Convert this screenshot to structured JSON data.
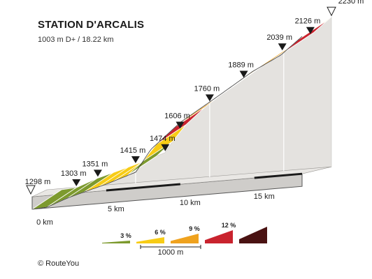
{
  "header": {
    "title": "STATION D'ARCALIS",
    "subtitle": "1003 m D+ / 18.22 km"
  },
  "footer": {
    "copyright": "©  RouteYou"
  },
  "chart_data": {
    "type": "area",
    "title": "STATION D'ARCALIS",
    "subtitle": "1003 m D+ / 18.22 km",
    "xlabel": "",
    "ylabel": "",
    "x_unit": "km",
    "xlim": [
      0,
      18.22
    ],
    "ylim": [
      1298,
      2230
    ],
    "distance_ticks": [
      {
        "km": 0,
        "label": "0 km"
      },
      {
        "km": 5,
        "label": "5 km"
      },
      {
        "km": 10,
        "label": "10 km"
      },
      {
        "km": 15,
        "label": "15 km"
      }
    ],
    "elevation_markers": [
      {
        "km": 0,
        "elevation": 1298,
        "label": "1298 m",
        "marker": "start"
      },
      {
        "km": 1,
        "elevation": 1303,
        "label": "1303 m",
        "marker": "km"
      },
      {
        "km": 2.45,
        "elevation": 1351,
        "label": "1351 m",
        "marker": "km"
      },
      {
        "km": 5,
        "elevation": 1415,
        "label": "1415 m",
        "marker": "km"
      },
      {
        "km": 7,
        "elevation": 1474,
        "label": "1474 m",
        "marker": "km"
      },
      {
        "km": 8,
        "elevation": 1606,
        "label": "1606 m",
        "marker": "km"
      },
      {
        "km": 10,
        "elevation": 1760,
        "label": "1760 m",
        "marker": "km"
      },
      {
        "km": 12.3,
        "elevation": 1889,
        "label": "1889 m",
        "marker": "km"
      },
      {
        "km": 14.9,
        "elevation": 2039,
        "label": "2039 m",
        "marker": "km"
      },
      {
        "km": 16.8,
        "elevation": 2126,
        "label": "2126 m",
        "marker": "km"
      },
      {
        "km": 18.22,
        "elevation": 2230,
        "label": "2230 m",
        "marker": "end"
      }
    ],
    "gradient_segments": [
      {
        "from_km": 0.0,
        "to_km": 1.0,
        "class": "3"
      },
      {
        "from_km": 1.0,
        "to_km": 2.4,
        "class": "3"
      },
      {
        "from_km": 2.4,
        "to_km": 3.5,
        "class": "3"
      },
      {
        "from_km": 3.5,
        "to_km": 4.5,
        "class": "6"
      },
      {
        "from_km": 4.5,
        "to_km": 5.5,
        "class": "6"
      },
      {
        "from_km": 5.5,
        "to_km": 6.4,
        "class": "6"
      },
      {
        "from_km": 6.4,
        "to_km": 7.5,
        "class": "3"
      },
      {
        "from_km": 7.5,
        "to_km": 8.4,
        "class": "6"
      },
      {
        "from_km": 8.4,
        "to_km": 9.7,
        "class": "12"
      },
      {
        "from_km": 9.7,
        "to_km": 10.7,
        "class": "9"
      },
      {
        "from_km": 10.7,
        "to_km": 11.7,
        "class": "9"
      },
      {
        "from_km": 11.7,
        "to_km": 12.7,
        "class": "9"
      },
      {
        "from_km": 12.7,
        "to_km": 13.7,
        "class": "6"
      },
      {
        "from_km": 13.7,
        "to_km": 14.8,
        "class": "9"
      },
      {
        "from_km": 14.8,
        "to_km": 16.0,
        "class": "9"
      },
      {
        "from_km": 16.0,
        "to_km": 17.0,
        "class": "3"
      },
      {
        "from_km": 17.0,
        "to_km": 18.0,
        "class": "12"
      },
      {
        "from_km": 18.0,
        "to_km": 18.22,
        "class": "6"
      }
    ],
    "legend": {
      "placement": "bottom",
      "classes": [
        {
          "key": "3",
          "label": "3 %",
          "color": "#7d9a2e"
        },
        {
          "key": "6",
          "label": "6 %",
          "color": "#f7cc16"
        },
        {
          "key": "9",
          "label": "9 %",
          "color": "#efa21e"
        },
        {
          "key": "12",
          "label": "12 %",
          "color": "#c9232e"
        },
        {
          "key": "15",
          "label": "",
          "color": "#4a1212"
        }
      ],
      "scale_label": "1000 m"
    }
  }
}
